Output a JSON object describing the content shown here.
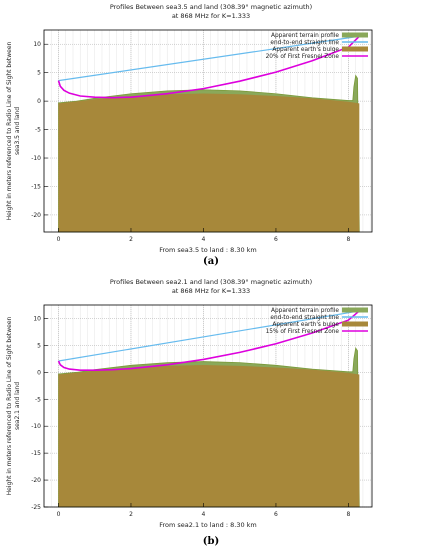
{
  "colors": {
    "terrain": "#7a9a3a",
    "terrain_fill": "#8aa85a",
    "sightline": "#66bbee",
    "bulge": "#a7883a",
    "fresnel": "#dd00dd",
    "grid": "#aaaaaa"
  },
  "panels": [
    {
      "label": "(a)"
    },
    {
      "label": "(b)"
    }
  ],
  "chart_data": [
    {
      "type": "line",
      "title": "Profiles Between sea3.5 and land (308.39° magnetic azimuth)",
      "subtitle": "at 868 MHz for K=1.333",
      "xlabel": "From sea3.5 to land : 8.30 km",
      "ylabel_line1": "Height in meters referenced to Radio Line of Sight between",
      "ylabel_line2": "sea3.5 and land",
      "xlim": [
        -0.4,
        8.65
      ],
      "ylim": [
        -23,
        12.5
      ],
      "xticks": [
        0,
        2,
        4,
        6,
        8
      ],
      "yticks": [
        10,
        5,
        0,
        -5,
        -10,
        -15,
        -20
      ],
      "grid": true,
      "legend_position": "top-right",
      "legend": [
        "Apparent terrain profile",
        "end-to-end straight line",
        "Apparent earth's bulge",
        "20% of First Fresnel Zone"
      ],
      "series": [
        {
          "name": "Apparent terrain profile",
          "x": [
            0,
            0.5,
            1,
            2,
            3,
            4,
            5,
            6,
            7,
            8,
            8.12,
            8.15,
            8.2,
            8.25,
            8.3
          ],
          "y": [
            -0.3,
            0.0,
            0.5,
            1.3,
            1.8,
            2.0,
            1.8,
            1.3,
            0.6,
            0.1,
            0.1,
            2.5,
            4.5,
            4.0,
            -23
          ]
        },
        {
          "name": "end-to-end straight line",
          "x": [
            0,
            8.3
          ],
          "y": [
            3.6,
            11.4
          ]
        },
        {
          "name": "Apparent earth's bulge",
          "x": [
            0,
            1,
            2,
            3,
            4,
            5,
            6,
            7,
            8,
            8.3
          ],
          "y": [
            -0.4,
            0.3,
            0.9,
            1.2,
            1.35,
            1.2,
            0.9,
            0.5,
            -0.1,
            -0.4
          ]
        },
        {
          "name": "20% of First Fresnel Zone",
          "x": [
            0,
            0.05,
            0.15,
            0.3,
            0.6,
            1,
            1.5,
            2,
            3,
            4,
            5,
            6,
            7,
            8,
            8.3
          ],
          "y": [
            3.6,
            2.6,
            1.9,
            1.4,
            0.9,
            0.7,
            0.6,
            0.7,
            1.3,
            2.2,
            3.5,
            5.1,
            7.1,
            9.5,
            11.4
          ]
        }
      ]
    },
    {
      "type": "line",
      "title": "Profiles Between sea2.1 and land (308.39° magnetic azimuth)",
      "subtitle": "at 868 MHz for K=1.333",
      "xlabel": "From sea2.1 to land : 8.30 km",
      "ylabel_line1": "Height in meters referenced to Radio Line of Sight between",
      "ylabel_line2": "sea2.1 and land",
      "xlim": [
        -0.4,
        8.65
      ],
      "ylim": [
        -25,
        12.5
      ],
      "xticks": [
        0,
        2,
        4,
        6,
        8
      ],
      "yticks": [
        10,
        5,
        0,
        -5,
        -10,
        -15,
        -20,
        -25
      ],
      "grid": true,
      "legend_position": "top-right",
      "legend": [
        "Apparent terrain profile",
        "end-to-end straight line",
        "Apparent earth's bulge",
        "15% of First Fresnel Zone"
      ],
      "series": [
        {
          "name": "Apparent terrain profile",
          "x": [
            0,
            0.5,
            1,
            2,
            3,
            4,
            5,
            6,
            7,
            8,
            8.12,
            8.15,
            8.2,
            8.25,
            8.3
          ],
          "y": [
            -0.3,
            0.0,
            0.5,
            1.3,
            1.8,
            2.0,
            1.8,
            1.3,
            0.6,
            0.1,
            0.1,
            2.5,
            4.5,
            4.0,
            -25
          ]
        },
        {
          "name": "end-to-end straight line",
          "x": [
            0,
            8.3
          ],
          "y": [
            2.1,
            11.4
          ]
        },
        {
          "name": "Apparent earth's bulge",
          "x": [
            0,
            1,
            2,
            3,
            4,
            5,
            6,
            7,
            8,
            8.3
          ],
          "y": [
            -0.4,
            0.3,
            0.9,
            1.2,
            1.35,
            1.2,
            0.9,
            0.5,
            -0.1,
            -0.4
          ]
        },
        {
          "name": "15% of First Fresnel Zone",
          "x": [
            0,
            0.05,
            0.15,
            0.3,
            0.6,
            1,
            1.5,
            2,
            3,
            4,
            5,
            6,
            7,
            8,
            8.3
          ],
          "y": [
            2.1,
            1.4,
            0.9,
            0.6,
            0.4,
            0.4,
            0.5,
            0.7,
            1.4,
            2.4,
            3.7,
            5.3,
            7.3,
            9.7,
            11.4
          ]
        }
      ]
    }
  ]
}
